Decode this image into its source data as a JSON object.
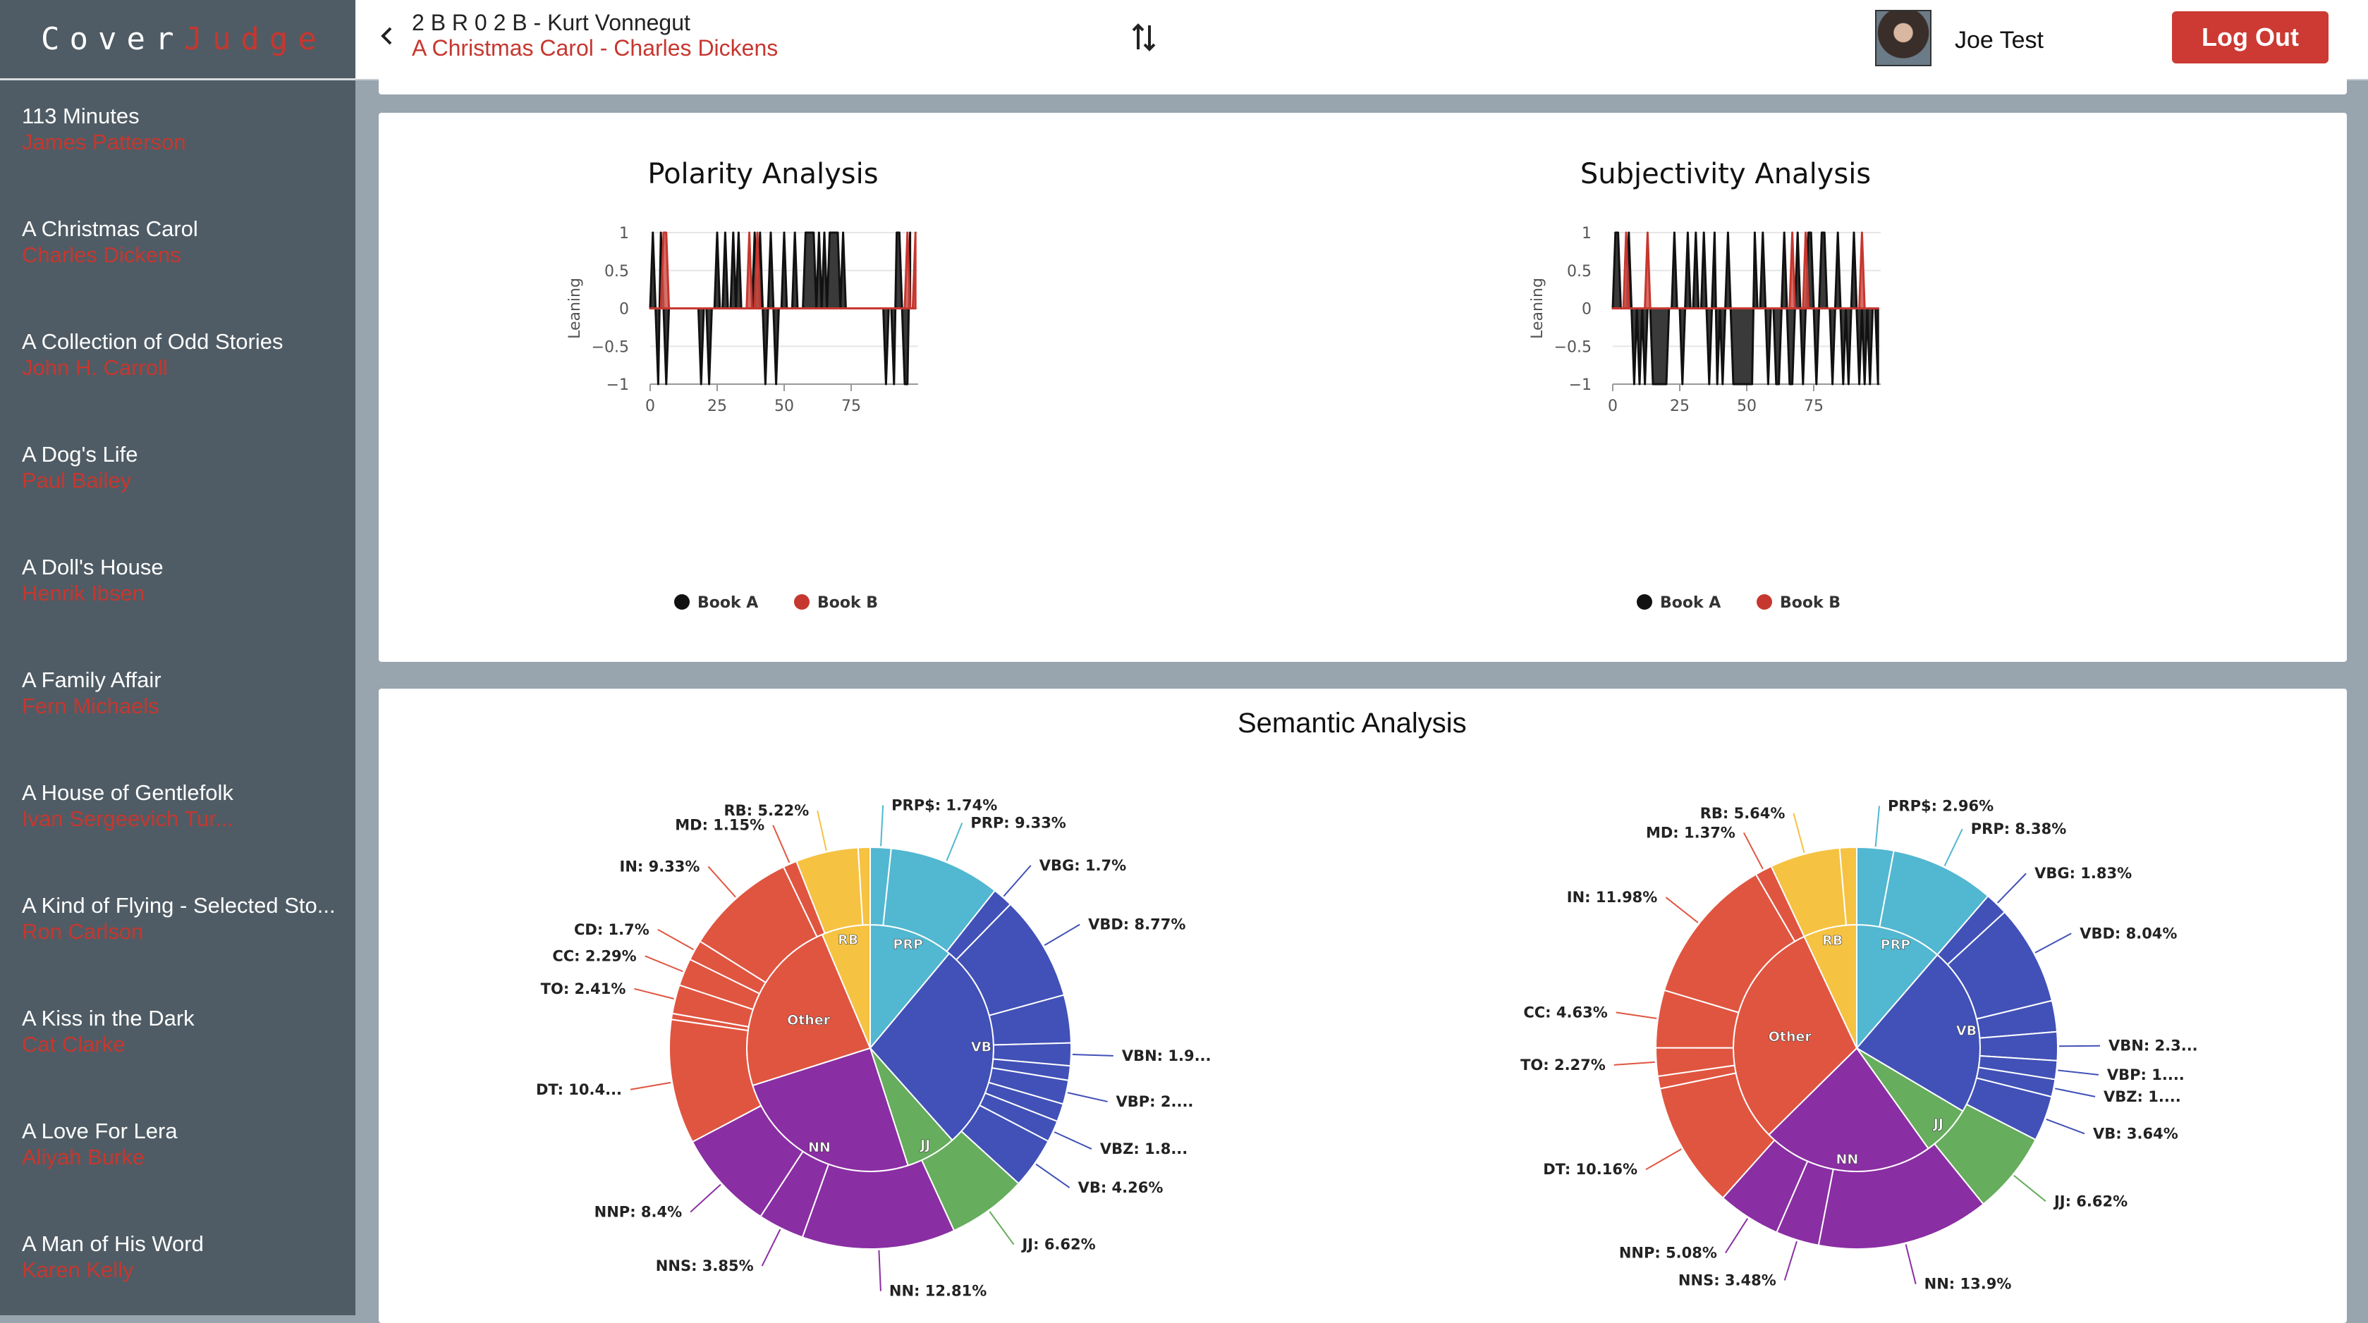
{
  "app": {
    "logo_part1": "Cover",
    "logo_part2": "Judge"
  },
  "header": {
    "book_a": "2 B R 0 2 B - Kurt Vonnegut",
    "book_b": "A Christmas Carol - Charles Dickens",
    "user_name": "Joe Test",
    "logout_label": "Log Out"
  },
  "sidebar": {
    "items": [
      {
        "title": "113 Minutes",
        "author": "James Patterson"
      },
      {
        "title": "A Christmas Carol",
        "author": "Charles Dickens"
      },
      {
        "title": "A Collection of Odd Stories",
        "author": "John H. Carroll"
      },
      {
        "title": "A Dog's Life",
        "author": "Paul Bailey"
      },
      {
        "title": "A Doll's House",
        "author": "Henrik Ibsen"
      },
      {
        "title": "A Family Affair",
        "author": "Fern Michaels"
      },
      {
        "title": "A House of Gentlefolk",
        "author": "Ivan Sergeevich Tur..."
      },
      {
        "title": "A Kind of Flying - Selected Sto...",
        "author": "Ron Carlson"
      },
      {
        "title": "A Kiss in the Dark",
        "author": "Cat Clarke"
      },
      {
        "title": "A Love For Lera",
        "author": "Aliyah Burke"
      },
      {
        "title": "A Man of His Word",
        "author": "Karen Kelly"
      }
    ]
  },
  "colors": {
    "accent": "#c6372f",
    "sidebar_bg": "#4f5c65",
    "book_a": "#111111",
    "book_b": "#c6372f"
  },
  "icons": {
    "back": "chevron-left-icon",
    "swap": "swap-vertical-icon"
  },
  "sections": {
    "semantic_title": "Semantic Analysis"
  },
  "chart_data": [
    {
      "type": "area",
      "title": "Polarity Analysis",
      "ylabel": "Leaning",
      "xlabel": "",
      "ylim": [
        -1,
        1
      ],
      "xlim": [
        0,
        100
      ],
      "x_ticks": [
        "0",
        "25",
        "50",
        "75"
      ],
      "y_ticks": [
        "1",
        "0.5",
        "0",
        "−0.5",
        "−1"
      ],
      "grid": true,
      "legend": "bottom",
      "series": [
        {
          "name": "Book A",
          "color": "#111111",
          "values": [
            0,
            1,
            0,
            -1,
            1,
            0,
            -1,
            0,
            0,
            0,
            0,
            0,
            0,
            0,
            0,
            0,
            0,
            0,
            0,
            -1,
            0,
            0,
            -1,
            0,
            0,
            1,
            0,
            0,
            1,
            0,
            0,
            1,
            0,
            1,
            0,
            0,
            0,
            0,
            0,
            1,
            0,
            1,
            0,
            -1,
            0,
            1,
            0,
            -1,
            0,
            0,
            1,
            0,
            0,
            0,
            1,
            0,
            0,
            0,
            1,
            1,
            1,
            1,
            0,
            1,
            0,
            1,
            0,
            1,
            1,
            1,
            1,
            0,
            1,
            0,
            0,
            0,
            0,
            0,
            0,
            0,
            0,
            0,
            0,
            0,
            0,
            0,
            0,
            0,
            -1,
            0,
            0,
            -1,
            1,
            1,
            0,
            -1,
            -1,
            1
          ]
        },
        {
          "name": "Book B",
          "color": "#c6372f",
          "values": [
            0,
            0,
            0,
            0,
            0,
            1,
            1,
            0,
            0,
            0,
            0,
            0,
            0,
            0,
            0,
            0,
            0,
            0,
            0,
            0,
            0,
            0,
            0,
            0,
            0,
            0,
            0,
            0,
            0,
            0,
            0,
            0,
            0,
            0,
            0,
            0,
            0,
            1,
            0,
            0,
            1,
            0,
            0,
            0,
            0,
            0,
            0,
            0,
            0,
            0,
            0,
            0,
            0,
            0,
            0,
            0,
            0,
            0,
            0,
            0,
            0,
            0,
            0,
            0,
            0,
            0,
            0,
            0,
            0,
            0,
            0,
            0,
            0,
            0,
            0,
            0,
            0,
            0,
            0,
            0,
            0,
            0,
            0,
            0,
            0,
            0,
            0,
            0,
            0,
            0,
            0,
            0,
            0,
            0,
            0,
            0,
            1,
            0,
            0,
            1
          ]
        }
      ]
    },
    {
      "type": "area",
      "title": "Subjectivity Analysis",
      "ylabel": "Leaning",
      "xlabel": "",
      "ylim": [
        -1,
        1
      ],
      "xlim": [
        0,
        100
      ],
      "x_ticks": [
        "0",
        "25",
        "50",
        "75"
      ],
      "y_ticks": [
        "1",
        "0.5",
        "0",
        "−0.5",
        "−1"
      ],
      "grid": true,
      "legend": "bottom",
      "series": [
        {
          "name": "Book A",
          "color": "#111111",
          "values": [
            0,
            1,
            1,
            0,
            0,
            0,
            1,
            0,
            -1,
            0,
            -1,
            0,
            -1,
            0,
            0,
            -1,
            -1,
            -1,
            -1,
            -1,
            -1,
            0,
            0,
            1,
            0,
            0,
            -1,
            0,
            1,
            0,
            0,
            1,
            0,
            0,
            1,
            0,
            -1,
            0,
            1,
            -1,
            0,
            -1,
            0,
            1,
            0,
            -1,
            -1,
            -1,
            -1,
            -1,
            -1,
            -1,
            -1,
            1,
            0,
            0,
            1,
            0,
            -1,
            0,
            0,
            -1,
            -1,
            0,
            1,
            0,
            -1,
            -1,
            0,
            1,
            0,
            -1,
            0,
            1,
            1,
            0,
            -1,
            0,
            1,
            1,
            0,
            0,
            -1,
            0,
            1,
            0,
            -1,
            0,
            -1,
            0,
            1,
            0,
            -1,
            0,
            -1,
            0,
            -1,
            0,
            0,
            -1
          ]
        },
        {
          "name": "Book B",
          "color": "#c6372f",
          "values": [
            0,
            0,
            0,
            0,
            0,
            1,
            0,
            0,
            0,
            0,
            0,
            0,
            0,
            1,
            0,
            0,
            0,
            0,
            0,
            0,
            0,
            0,
            0,
            0,
            0,
            0,
            0,
            0,
            0,
            0,
            0,
            0,
            0,
            0,
            0,
            0,
            0,
            0,
            0,
            0,
            0,
            0,
            0,
            0,
            0,
            0,
            0,
            0,
            0,
            0,
            0,
            0,
            0,
            0,
            0,
            0,
            0,
            0,
            0,
            0,
            0,
            0,
            0,
            0,
            0,
            0,
            0,
            1,
            0,
            0,
            0,
            0,
            1,
            0,
            0,
            0,
            0,
            0,
            0,
            0,
            0,
            0,
            0,
            0,
            0,
            0,
            0,
            0,
            0,
            0,
            0,
            0,
            0,
            1,
            0,
            0,
            0,
            0,
            0,
            0
          ]
        }
      ]
    },
    {
      "type": "pie",
      "title": "",
      "inner_rings": [
        {
          "label": "PRP",
          "value": 11.07,
          "color": "#52b7d0"
        },
        {
          "label": "VB",
          "value": 27.35,
          "color": "#4151b7"
        },
        {
          "label": "JJ",
          "value": 6.62,
          "color": "#66ad5d"
        },
        {
          "label": "NN",
          "value": 25.06,
          "color": "#8a2ea3"
        },
        {
          "label": "Other",
          "value": 23.54,
          "color": "#e05540"
        },
        {
          "label": "RB",
          "value": 6.36,
          "color": "#f5c242"
        }
      ],
      "outer_slices": [
        {
          "label": "PRP$: 1.74%",
          "value": 1.74,
          "group": "PRP",
          "labeled": true
        },
        {
          "label": "PRP: 9.33%",
          "value": 9.33,
          "group": "PRP",
          "labeled": true
        },
        {
          "label": "VBG: 1.7%",
          "value": 1.7,
          "group": "VB",
          "labeled": true
        },
        {
          "label": "VBD: 8.77%",
          "value": 8.77,
          "group": "VB",
          "labeled": true
        },
        {
          "label": "VB?",
          "value": 4.0,
          "group": "VB",
          "labeled": false
        },
        {
          "label": "VBN: 1.9...",
          "value": 1.9,
          "group": "VB",
          "labeled": true
        },
        {
          "label": "VB?",
          "value": 1.2,
          "group": "VB",
          "labeled": false
        },
        {
          "label": "VBP: 2....",
          "value": 2.0,
          "group": "VB",
          "labeled": true
        },
        {
          "label": "VB?",
          "value": 1.5,
          "group": "VB",
          "labeled": false
        },
        {
          "label": "VBZ: 1.8...",
          "value": 1.8,
          "group": "VB",
          "labeled": true
        },
        {
          "label": "VB: 4.26%",
          "value": 4.26,
          "group": "VB",
          "labeled": true
        },
        {
          "label": "JJ: 6.62%",
          "value": 6.62,
          "group": "JJ",
          "labeled": true
        },
        {
          "label": "NN: 12.81%",
          "value": 12.81,
          "group": "NN",
          "labeled": true
        },
        {
          "label": "NNS: 3.85%",
          "value": 3.85,
          "group": "NN",
          "labeled": true
        },
        {
          "label": "NNP: 8.4%",
          "value": 8.4,
          "group": "NN",
          "labeled": true
        },
        {
          "label": "DT: 10.4...",
          "value": 10.4,
          "group": "Other",
          "labeled": true
        },
        {
          "label": "O?",
          "value": 0.5,
          "group": "Other",
          "labeled": false
        },
        {
          "label": "TO: 2.41%",
          "value": 2.41,
          "group": "Other",
          "labeled": true
        },
        {
          "label": "CC: 2.29%",
          "value": 2.29,
          "group": "Other",
          "labeled": true
        },
        {
          "label": "CD: 1.7%",
          "value": 1.7,
          "group": "Other",
          "labeled": true
        },
        {
          "label": "IN: 9.33%",
          "value": 9.33,
          "group": "Other",
          "labeled": true
        },
        {
          "label": "MD: 1.15%",
          "value": 1.15,
          "group": "Other",
          "labeled": true
        },
        {
          "label": "RB: 5.22%",
          "value": 5.22,
          "group": "RB",
          "labeled": true
        },
        {
          "label": "RB?",
          "value": 1.0,
          "group": "RB",
          "labeled": false
        }
      ]
    },
    {
      "type": "pie",
      "title": "",
      "inner_rings": [
        {
          "label": "PRP",
          "value": 11.34,
          "color": "#52b7d0"
        },
        {
          "label": "VB",
          "value": 22.2,
          "color": "#4151b7"
        },
        {
          "label": "JJ",
          "value": 6.62,
          "color": "#66ad5d"
        },
        {
          "label": "NN",
          "value": 22.46,
          "color": "#8a2ea3"
        },
        {
          "label": "Other",
          "value": 30.4,
          "color": "#e05540"
        },
        {
          "label": "RB",
          "value": 7.0,
          "color": "#f5c242"
        }
      ],
      "outer_slices": [
        {
          "label": "PRP$: 2.96%",
          "value": 2.96,
          "group": "PRP",
          "labeled": true
        },
        {
          "label": "PRP: 8.38%",
          "value": 8.38,
          "group": "PRP",
          "labeled": true
        },
        {
          "label": "VBG: 1.83%",
          "value": 1.83,
          "group": "VB",
          "labeled": true
        },
        {
          "label": "VBD: 8.04%",
          "value": 8.04,
          "group": "VB",
          "labeled": true
        },
        {
          "label": "VB?",
          "value": 2.5,
          "group": "VB",
          "labeled": false
        },
        {
          "label": "VBN: 2.3...",
          "value": 2.3,
          "group": "VB",
          "labeled": true
        },
        {
          "label": "VBP: 1....",
          "value": 1.5,
          "group": "VB",
          "labeled": true
        },
        {
          "label": "VBZ: 1....",
          "value": 1.4,
          "group": "VB",
          "labeled": true
        },
        {
          "label": "VB: 3.64%",
          "value": 3.64,
          "group": "VB",
          "labeled": true
        },
        {
          "label": "JJ: 6.62%",
          "value": 6.62,
          "group": "JJ",
          "labeled": true
        },
        {
          "label": "NN: 13.9%",
          "value": 13.9,
          "group": "NN",
          "labeled": true
        },
        {
          "label": "NNS: 3.48%",
          "value": 3.48,
          "group": "NN",
          "labeled": true
        },
        {
          "label": "NNP: 5.08%",
          "value": 5.08,
          "group": "NN",
          "labeled": true
        },
        {
          "label": "DT: 10.16%",
          "value": 10.16,
          "group": "Other",
          "labeled": true
        },
        {
          "label": "O?",
          "value": 1.0,
          "group": "Other",
          "labeled": false
        },
        {
          "label": "TO: 2.27%",
          "value": 2.27,
          "group": "Other",
          "labeled": true
        },
        {
          "label": "CC: 4.63%",
          "value": 4.63,
          "group": "Other",
          "labeled": true
        },
        {
          "label": "IN: 11.98%",
          "value": 11.98,
          "group": "Other",
          "labeled": true
        },
        {
          "label": "MD: 1.37%",
          "value": 1.37,
          "group": "Other",
          "labeled": true
        },
        {
          "label": "RB: 5.64%",
          "value": 5.64,
          "group": "RB",
          "labeled": true
        },
        {
          "label": "RB?",
          "value": 1.36,
          "group": "RB",
          "labeled": false
        }
      ]
    }
  ]
}
